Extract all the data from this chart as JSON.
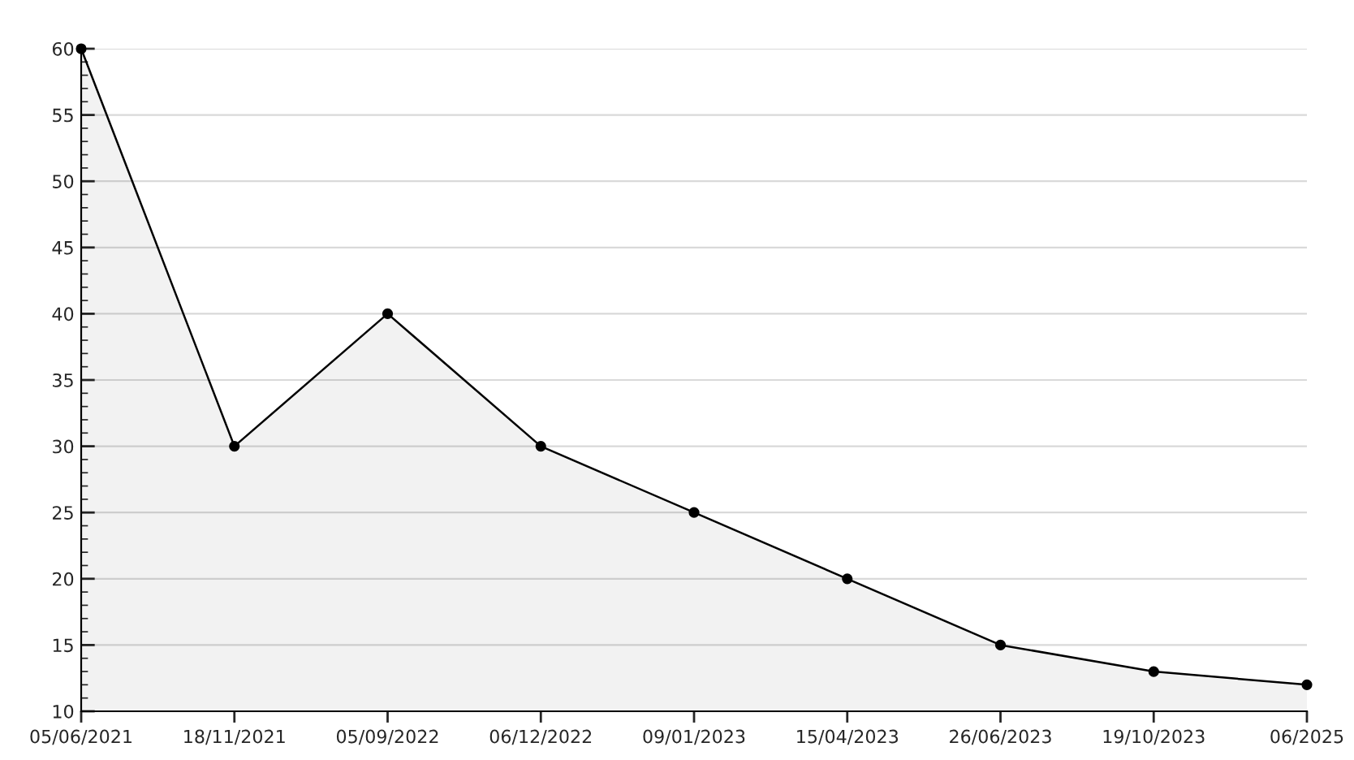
{
  "chart_data": {
    "type": "area",
    "categories": [
      "05/06/2021",
      "18/11/2021",
      "05/09/2022",
      "06/12/2022",
      "09/01/2023",
      "15/04/2023",
      "26/06/2023",
      "19/10/2023",
      "06/2025"
    ],
    "series": [
      {
        "color": "#000000",
        "values": [
          60,
          30,
          40,
          30,
          25,
          20,
          15,
          13,
          12
        ]
      }
    ],
    "ylim": [
      10,
      60
    ],
    "yticks": [
      10,
      15,
      20,
      25,
      30,
      35,
      40,
      45,
      50,
      55,
      60
    ],
    "grid": "y",
    "marker": "circle",
    "line_style": "solid"
  }
}
